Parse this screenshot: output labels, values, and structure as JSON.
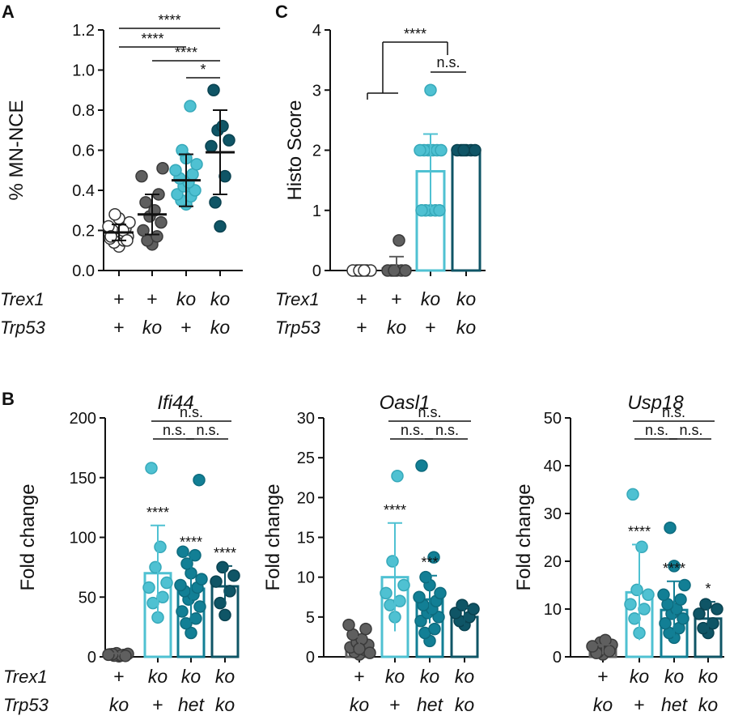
{
  "chart_data": [
    {
      "panel": "A",
      "type": "scatter",
      "ylabel": "% MN-NCE",
      "ylim": [
        0,
        1.2
      ],
      "yticks": [
        0.0,
        0.2,
        0.4,
        0.6,
        0.8,
        1.0,
        1.2
      ],
      "ytick_labels": [
        "0.0",
        "0.2",
        "0.4",
        "0.6",
        "0.8",
        "1.0",
        "1.2"
      ],
      "genotype_rows": [
        {
          "gene": "Trex1",
          "values": [
            "+",
            "+",
            "ko",
            "ko"
          ]
        },
        {
          "gene": "Trp53",
          "values": [
            "+",
            "ko",
            "+",
            "ko"
          ]
        }
      ],
      "groups": [
        {
          "mean": 0.19,
          "sd": 0.04,
          "points": [
            0.12,
            0.14,
            0.15,
            0.16,
            0.17,
            0.18,
            0.19,
            0.2,
            0.21,
            0.22,
            0.24,
            0.26,
            0.28,
            0.2,
            0.17,
            0.15
          ],
          "style": "white"
        },
        {
          "mean": 0.28,
          "sd": 0.1,
          "points": [
            0.13,
            0.15,
            0.17,
            0.2,
            0.24,
            0.27,
            0.3,
            0.34,
            0.38,
            0.47,
            0.51
          ],
          "style": "gray"
        },
        {
          "mean": 0.45,
          "sd": 0.13,
          "points": [
            0.33,
            0.35,
            0.37,
            0.38,
            0.4,
            0.42,
            0.44,
            0.46,
            0.48,
            0.5,
            0.53,
            0.56,
            0.6,
            0.82
          ],
          "style": "light"
        },
        {
          "mean": 0.59,
          "sd": 0.21,
          "points": [
            0.22,
            0.34,
            0.47,
            0.62,
            0.65,
            0.7,
            0.72,
            0.9
          ],
          "style": "dark"
        }
      ],
      "comparisons": [
        {
          "from": 0,
          "to": 3,
          "label": "****"
        },
        {
          "from": 0,
          "to": 2,
          "label": "****"
        },
        {
          "from": 1,
          "to": 3,
          "label": "****"
        },
        {
          "from": 2,
          "to": 3,
          "label": "*"
        }
      ]
    },
    {
      "panel": "C",
      "type": "bar",
      "ylabel": "Histo  Score",
      "ylim": [
        0,
        4
      ],
      "yticks": [
        0,
        1,
        2,
        3,
        4
      ],
      "ytick_labels": [
        "0",
        "1",
        "2",
        "3",
        "4"
      ],
      "genotype_rows": [
        {
          "gene": "Trex1",
          "values": [
            "+",
            "+",
            "ko",
            "ko"
          ]
        },
        {
          "gene": "Trp53",
          "values": [
            "+",
            "ko",
            "+",
            "ko"
          ]
        }
      ],
      "groups": [
        {
          "mean": 0,
          "sd": 0,
          "points": [
            0,
            0,
            0,
            0,
            0,
            0,
            0
          ],
          "style": "white"
        },
        {
          "mean": 0.03,
          "sd": 0.2,
          "points": [
            0,
            0,
            0,
            0,
            0,
            0,
            0.5
          ],
          "style": "gray"
        },
        {
          "mean": 1.65,
          "sd": 0.62,
          "points": [
            1,
            1,
            1,
            1,
            1,
            2,
            2,
            2,
            2,
            2,
            2,
            3
          ],
          "style": "light"
        },
        {
          "mean": 2.0,
          "sd": 0,
          "points": [
            2,
            2,
            2,
            2,
            2,
            2
          ],
          "style": "dark"
        }
      ],
      "comparisons": [
        {
          "label": "****",
          "note": "groups 1-2 vs group 4"
        },
        {
          "from": 2,
          "to": 3,
          "label": "n.s."
        }
      ]
    },
    {
      "panel": "B",
      "type": "bar",
      "title": "Ifi44",
      "ylabel": "Fold change",
      "ylim": [
        0,
        200
      ],
      "yticks": [
        0,
        50,
        100,
        150,
        200
      ],
      "ytick_labels": [
        "0",
        "50",
        "100",
        "150",
        "200"
      ],
      "genotype_rows": [
        {
          "gene": "Trex1",
          "values": [
            "+",
            "ko",
            "ko",
            "ko"
          ]
        },
        {
          "gene": "Trp53",
          "values": [
            "ko",
            "+",
            "het",
            "ko"
          ]
        }
      ],
      "groups": [
        {
          "mean": 2,
          "sd": 1,
          "points": [
            0.5,
            1,
            1.5,
            2,
            2.5,
            3,
            1.2,
            2.2,
            0.8,
            1.8
          ],
          "style": "gray",
          "sig": ""
        },
        {
          "mean": 70,
          "sd": 40,
          "points": [
            33,
            45,
            50,
            58,
            62,
            75,
            92,
            158
          ],
          "style": "light",
          "sig": "****"
        },
        {
          "mean": 57,
          "sd": 28,
          "points": [
            20,
            28,
            32,
            38,
            42,
            48,
            52,
            55,
            58,
            60,
            65,
            70,
            78,
            85,
            88,
            148
          ],
          "style": "mid",
          "sig": "****"
        },
        {
          "mean": 59,
          "sd": 17,
          "points": [
            35,
            45,
            55,
            63,
            68,
            75
          ],
          "style": "dark",
          "sig": "****"
        }
      ],
      "comparisons": [
        {
          "from": 1,
          "to": 3,
          "label": "n.s."
        },
        {
          "from": 1,
          "to": 2,
          "label": "n.s."
        },
        {
          "from": 2,
          "to": 3,
          "label": "n.s."
        }
      ]
    },
    {
      "panel": "B2",
      "type": "bar",
      "title": "Oasl1",
      "ylabel": "Fold change",
      "ylim": [
        0,
        30
      ],
      "yticks": [
        0,
        5,
        10,
        15,
        20,
        25,
        30
      ],
      "ytick_labels": [
        "0",
        "5",
        "10",
        "15",
        "20",
        "25",
        "30"
      ],
      "genotype_rows": [
        {
          "gene": "Trex1",
          "values": [
            "+",
            "ko",
            "ko",
            "ko"
          ]
        },
        {
          "gene": "Trp53",
          "values": [
            "ko",
            "+",
            "het",
            "ko"
          ]
        }
      ],
      "groups": [
        {
          "mean": 1.5,
          "sd": 1.0,
          "points": [
            0.3,
            0.6,
            0.9,
            1.2,
            1.5,
            1.8,
            2.2,
            2.8,
            3.5,
            4.0,
            0.5,
            1.0
          ],
          "style": "gray",
          "sig": ""
        },
        {
          "mean": 10,
          "sd": 6.8,
          "points": [
            5,
            6.5,
            7,
            8,
            9,
            12,
            22.7
          ],
          "style": "light",
          "sig": "****"
        },
        {
          "mean": 7.2,
          "sd": 3.0,
          "points": [
            2,
            3,
            3.5,
            4.5,
            5,
            5.5,
            6,
            6.5,
            7,
            7.5,
            8,
            9,
            10,
            12.5,
            24
          ],
          "style": "mid",
          "sig": "***"
        },
        {
          "mean": 5,
          "sd": 1.2,
          "points": [
            4,
            4.5,
            5,
            5.5,
            6,
            6.5
          ],
          "style": "dark",
          "sig": ""
        }
      ],
      "comparisons": [
        {
          "from": 1,
          "to": 3,
          "label": "n.s."
        },
        {
          "from": 1,
          "to": 2,
          "label": "n.s."
        },
        {
          "from": 2,
          "to": 3,
          "label": "n.s."
        }
      ]
    },
    {
      "panel": "B3",
      "type": "bar",
      "title": "Usp18",
      "ylabel": "Fold change",
      "ylim": [
        0,
        50
      ],
      "yticks": [
        0,
        10,
        20,
        30,
        40,
        50
      ],
      "ytick_labels": [
        "0",
        "10",
        "20",
        "30",
        "40",
        "50"
      ],
      "genotype_rows": [
        {
          "gene": "Trex1",
          "values": [
            "+",
            "ko",
            "ko",
            "ko"
          ]
        },
        {
          "gene": "Trp53",
          "values": [
            "ko",
            "+",
            "het",
            "ko"
          ]
        }
      ],
      "groups": [
        {
          "mean": 1.5,
          "sd": 1.0,
          "points": [
            0.5,
            1,
            1.5,
            2,
            2.5,
            3,
            3.5,
            0.8,
            1.2,
            2.2
          ],
          "style": "gray",
          "sig": ""
        },
        {
          "mean": 13.5,
          "sd": 10,
          "points": [
            5,
            8,
            10,
            11,
            13,
            14,
            23,
            34
          ],
          "style": "light",
          "sig": "****"
        },
        {
          "mean": 9.8,
          "sd": 6,
          "points": [
            4,
            5,
            6,
            7,
            8,
            9,
            10,
            11,
            12,
            13,
            15,
            19,
            27
          ],
          "style": "mid",
          "sig": "****"
        },
        {
          "mean": 8,
          "sd": 3.5,
          "points": [
            5,
            6,
            7,
            9,
            10,
            11
          ],
          "style": "dark",
          "sig": "*"
        }
      ],
      "comparisons": [
        {
          "from": 1,
          "to": 3,
          "label": "n.s."
        },
        {
          "from": 1,
          "to": 2,
          "label": "n.s."
        },
        {
          "from": 2,
          "to": 3,
          "label": "n.s."
        }
      ]
    }
  ],
  "panel_labels": {
    "a": "A",
    "b": "B",
    "c": "C"
  },
  "colors": {
    "white": "#ffffff",
    "gray": "#5f5f5f",
    "light": "#4fc1d2",
    "mid": "#127f95",
    "dark": "#0f5566",
    "axis": "#111111"
  }
}
